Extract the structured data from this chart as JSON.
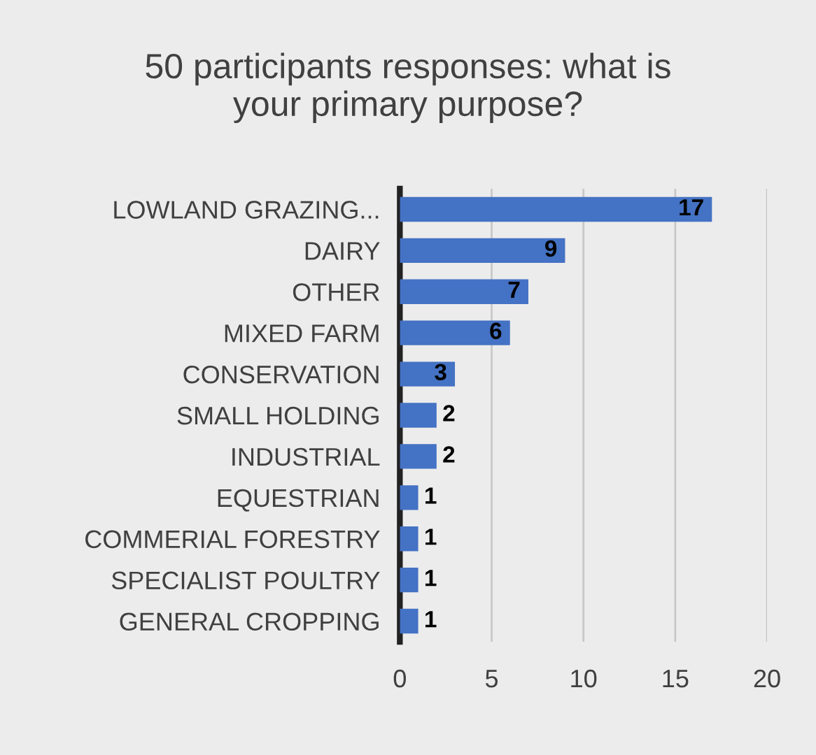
{
  "chart_data": {
    "type": "bar",
    "orientation": "horizontal",
    "title": "50 participants responses: what is\nyour primary purpose?",
    "categories": [
      "LOWLAND GRAZING...",
      "DAIRY",
      "OTHER",
      "MIXED FARM",
      "CONSERVATION",
      "SMALL HOLDING",
      "INDUSTRIAL",
      "EQUESTRIAN",
      "COMMERIAL FORESTRY",
      "SPECIALIST POULTRY",
      "GENERAL CROPPING"
    ],
    "values": [
      17,
      9,
      7,
      6,
      3,
      2,
      2,
      1,
      1,
      1,
      1
    ],
    "color": "#4472c4",
    "xlim": [
      0,
      20
    ],
    "xticks": [
      0,
      5,
      10,
      15,
      20
    ],
    "grid": "x",
    "data_labels": true
  }
}
